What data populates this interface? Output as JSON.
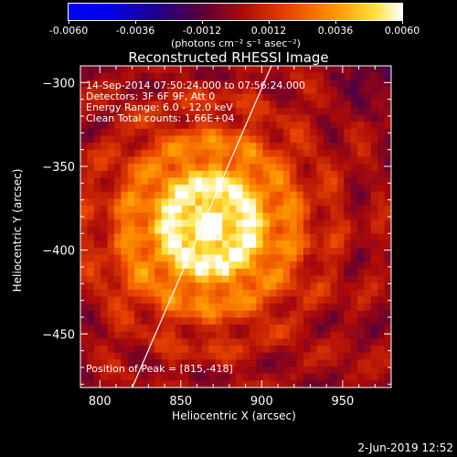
{
  "colorbar": {
    "tick_labels": [
      "-0.0060",
      "-0.0036",
      "-0.0012",
      "0.0012",
      "0.0036",
      "0.0060"
    ],
    "units": "(photons cm⁻² s⁻¹ asec⁻²)",
    "range": [
      -0.006,
      0.006
    ]
  },
  "annotations": {
    "time_range": "14-Sep-2014 07:50:24.000 to 07:56:24.000",
    "detectors": "Detectors: 3F 6F 9F, Att 0",
    "energy": "Energy Range: 6.0 - 12.0 keV",
    "method": "Clean     Total counts: 1.66E+04",
    "peak": "Position of Peak = [815,-418]"
  },
  "footer": {
    "date": "2-Jun-2019 12:52"
  },
  "chart_data": {
    "type": "heatmap",
    "title": "Reconstructed RHESSI Image",
    "xlabel": "Heliocentric X (arcsec)",
    "ylabel": "Heliocentric Y (arcsec)",
    "xlim": [
      788,
      980
    ],
    "ylim": [
      -482,
      -290
    ],
    "xticks": [
      800,
      850,
      900,
      950
    ],
    "yticks": [
      -300,
      -350,
      -400,
      -450
    ],
    "limb_line": {
      "x": [
        820,
        906
      ],
      "y": [
        -482,
        -290
      ]
    },
    "peak": {
      "x": 815,
      "y": -418
    }
  }
}
